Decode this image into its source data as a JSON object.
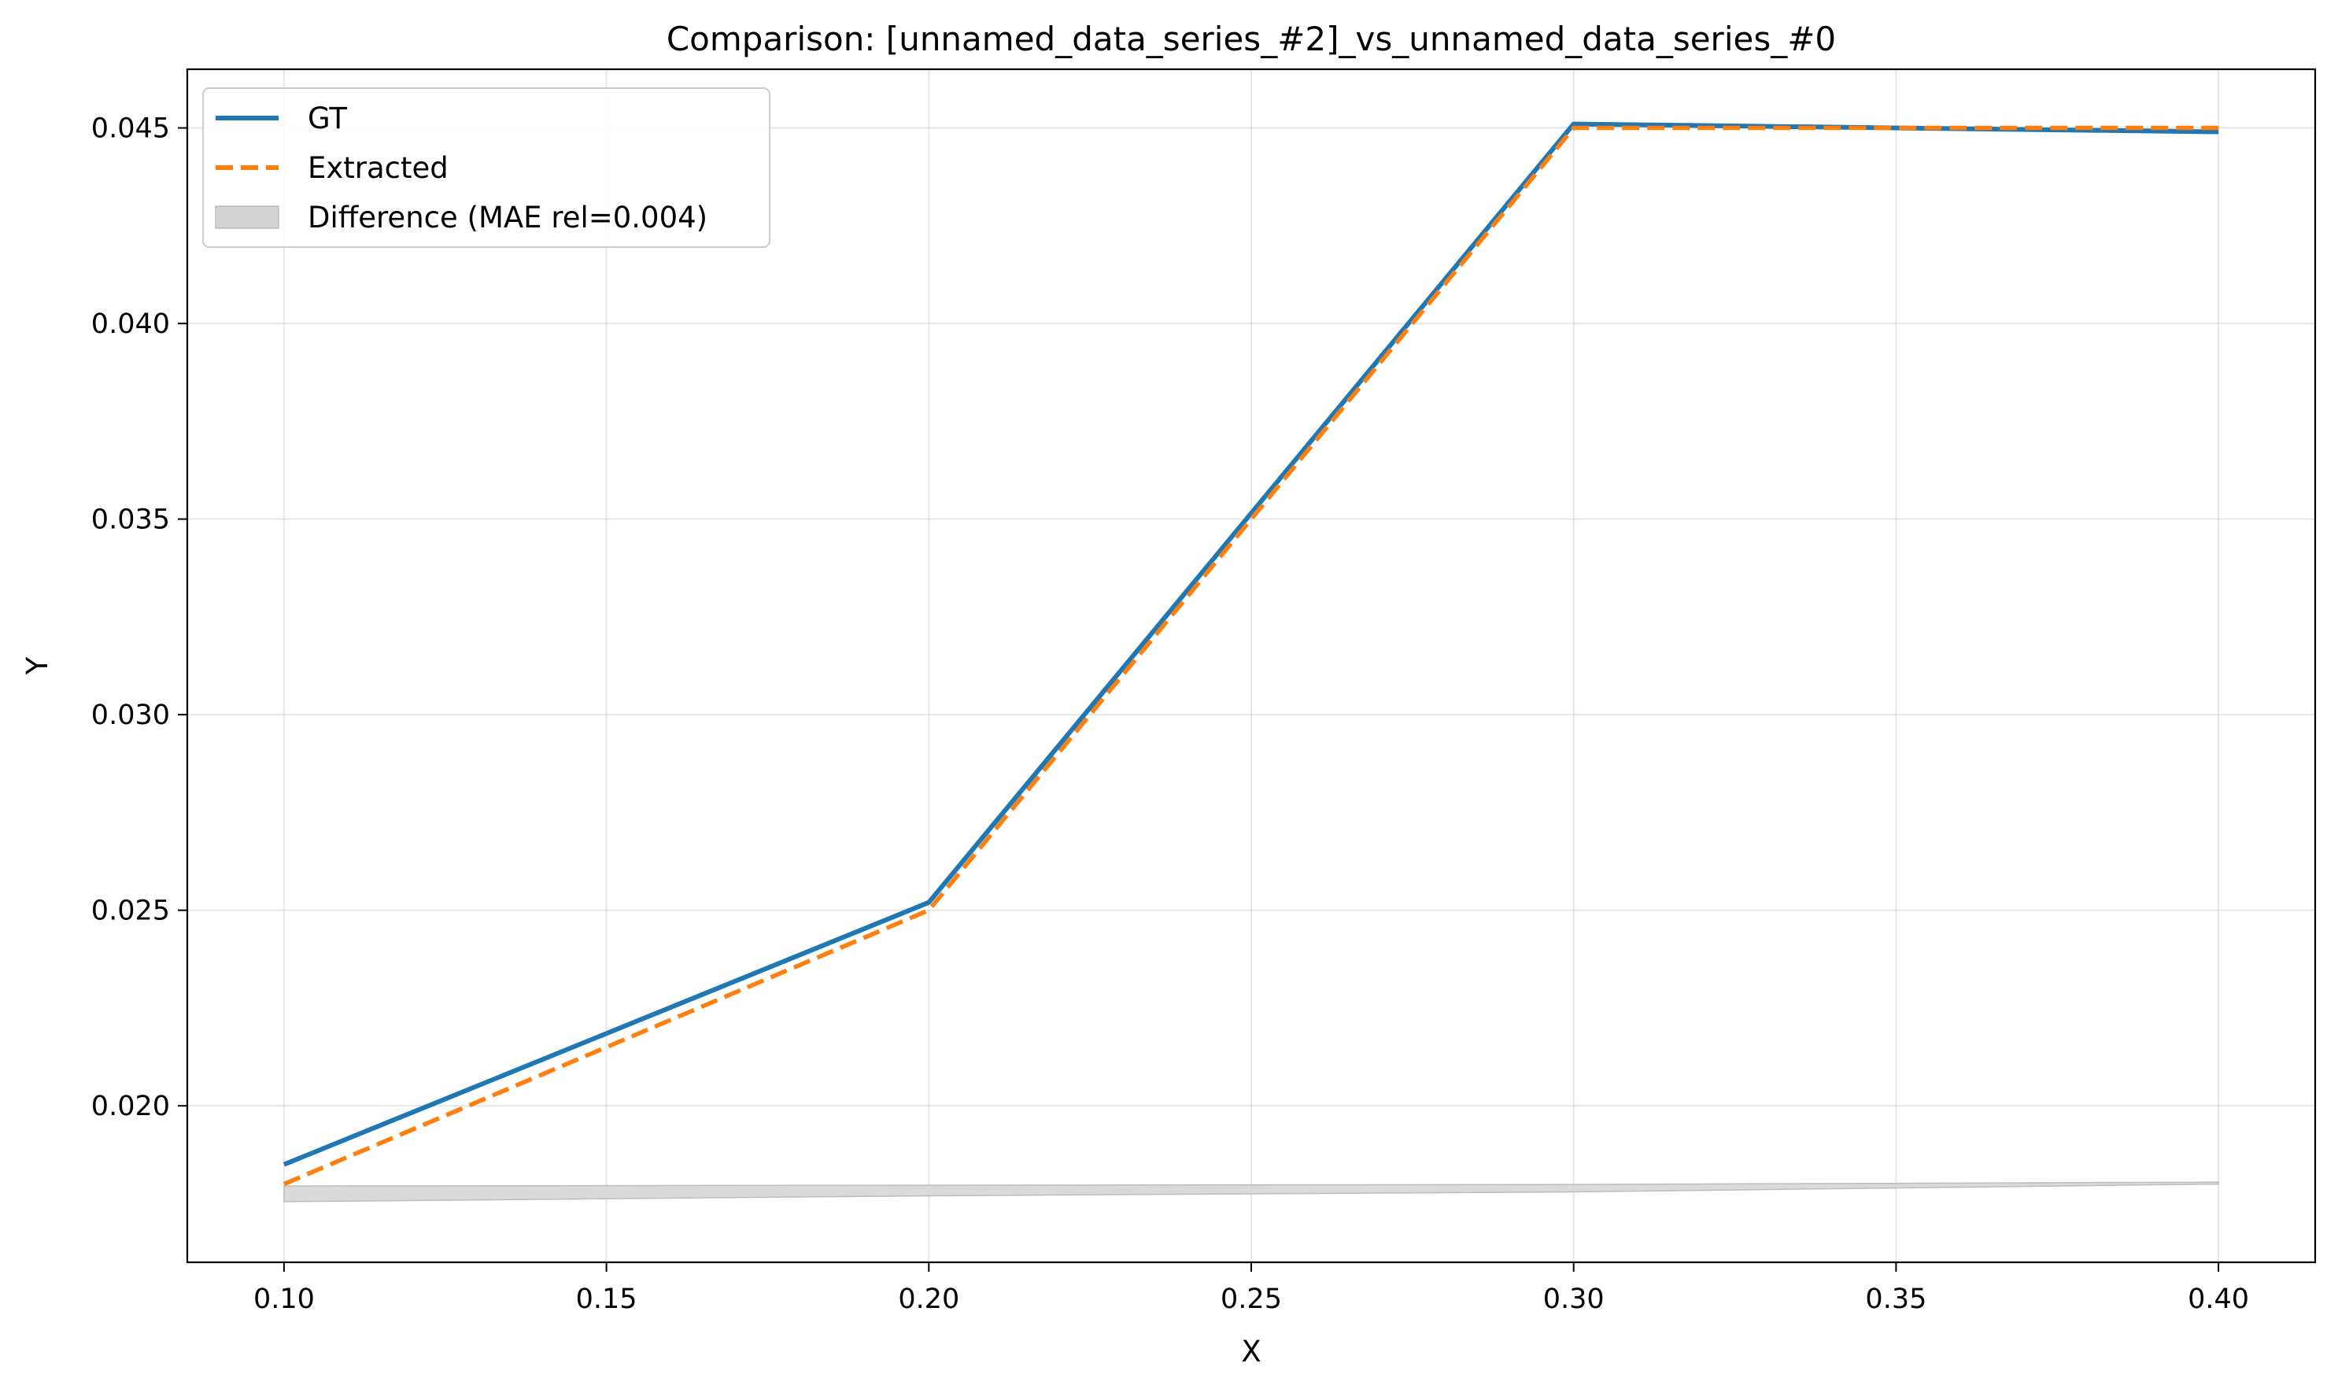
{
  "chart_data": {
    "type": "line",
    "title": "Comparison: [unnamed_data_series_#2]_vs_unnamed_data_series_#0",
    "xlabel": "X",
    "ylabel": "Y",
    "xlim": [
      0.085,
      0.415
    ],
    "ylim": [
      0.016,
      0.0465
    ],
    "grid": true,
    "legend_position": "top-left",
    "x_ticks": [
      "0.10",
      "0.15",
      "0.20",
      "0.25",
      "0.30",
      "0.35",
      "0.40"
    ],
    "y_ticks": [
      "0.020",
      "0.025",
      "0.030",
      "0.035",
      "0.040",
      "0.045"
    ],
    "series": [
      {
        "name": "GT",
        "style": "solid",
        "color": "#1f77b4",
        "x": [
          0.1,
          0.2,
          0.3,
          0.4
        ],
        "y": [
          0.0185,
          0.0252,
          0.0451,
          0.0449
        ]
      },
      {
        "name": "Extracted",
        "style": "dashed",
        "color": "#ff7f0e",
        "x": [
          0.1,
          0.2,
          0.3,
          0.4
        ],
        "y": [
          0.018,
          0.025,
          0.045,
          0.045
        ]
      }
    ],
    "difference_band": {
      "name": "Difference (MAE rel=0.004)",
      "color": "#d3d3d3",
      "x": [
        0.1,
        0.2,
        0.3,
        0.4
      ],
      "upper": [
        0.01795,
        0.01797,
        0.01799,
        0.01805
      ],
      "lower": [
        0.01755,
        0.0177,
        0.0178,
        0.018
      ]
    }
  }
}
